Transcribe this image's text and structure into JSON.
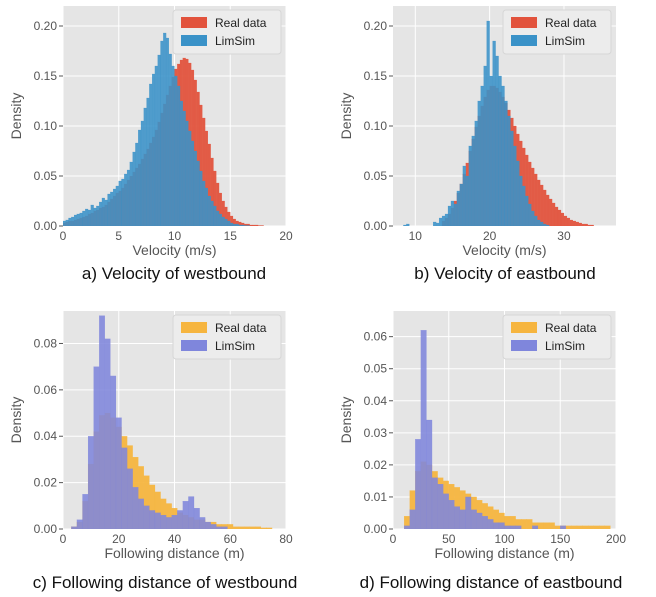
{
  "colors": {
    "panel_bg": "#e5e5e5",
    "grid": "#ffffff",
    "real_velocity": "#e2533d",
    "limsim_velocity": "#3a92c8",
    "real_distance": "#f6b53f",
    "limsim_distance": "#7f86dc"
  },
  "chart_data": [
    {
      "type": "histogram",
      "caption": "a) Velocity of westbound",
      "xlabel": "Velocity (m/s)",
      "ylabel": "Density",
      "xlim": [
        0,
        20
      ],
      "ylim": [
        0,
        0.22
      ],
      "xticks": [
        0,
        5,
        10,
        15,
        20
      ],
      "yticks": [
        0.0,
        0.05,
        0.1,
        0.15,
        0.2
      ],
      "ytick_labels": [
        "0.00",
        "0.05",
        "0.10",
        "0.15",
        "0.20"
      ],
      "grid": true,
      "legend_position": "top-right",
      "x": [
        0.12,
        0.37,
        0.62,
        0.87,
        1.12,
        1.37,
        1.62,
        1.87,
        2.12,
        2.37,
        2.62,
        2.87,
        3.12,
        3.37,
        3.62,
        3.87,
        4.12,
        4.37,
        4.62,
        4.87,
        5.12,
        5.37,
        5.62,
        5.87,
        6.12,
        6.37,
        6.62,
        6.87,
        7.12,
        7.37,
        7.62,
        7.87,
        8.12,
        8.37,
        8.62,
        8.87,
        9.12,
        9.37,
        9.62,
        9.87,
        10.12,
        10.37,
        10.62,
        10.87,
        11.12,
        11.37,
        11.62,
        11.87,
        12.12,
        12.37,
        12.62,
        12.87,
        13.12,
        13.37,
        13.62,
        13.87,
        14.12,
        14.37,
        14.62,
        14.87,
        15.12,
        15.37,
        15.62,
        15.87,
        16.12,
        16.37,
        16.62,
        16.87,
        17.12,
        17.37,
        17.62,
        17.87
      ],
      "series": [
        {
          "name": "Real data",
          "color": "#e2533d",
          "values": [
            0.003,
            0.004,
            0.005,
            0.005,
            0.006,
            0.007,
            0.008,
            0.009,
            0.01,
            0.012,
            0.013,
            0.015,
            0.016,
            0.018,
            0.019,
            0.021,
            0.024,
            0.027,
            0.03,
            0.033,
            0.035,
            0.038,
            0.042,
            0.046,
            0.05,
            0.054,
            0.058,
            0.062,
            0.067,
            0.072,
            0.077,
            0.083,
            0.089,
            0.096,
            0.104,
            0.113,
            0.122,
            0.131,
            0.14,
            0.149,
            0.157,
            0.162,
            0.166,
            0.168,
            0.167,
            0.163,
            0.156,
            0.146,
            0.134,
            0.121,
            0.108,
            0.095,
            0.082,
            0.068,
            0.055,
            0.043,
            0.033,
            0.025,
            0.019,
            0.014,
            0.01,
            0.007,
            0.005,
            0.004,
            0.003,
            0.002,
            0.002,
            0.001,
            0.001,
            0.001,
            0.0005,
            0.0005
          ]
        },
        {
          "name": "LimSim",
          "color": "#3a92c8",
          "values": [
            0.005,
            0.006,
            0.008,
            0.009,
            0.011,
            0.012,
            0.013,
            0.015,
            0.017,
            0.016,
            0.021,
            0.018,
            0.02,
            0.024,
            0.028,
            0.026,
            0.032,
            0.034,
            0.037,
            0.04,
            0.045,
            0.047,
            0.052,
            0.056,
            0.064,
            0.074,
            0.083,
            0.096,
            0.105,
            0.118,
            0.128,
            0.142,
            0.152,
            0.16,
            0.171,
            0.185,
            0.193,
            0.188,
            0.172,
            0.16,
            0.15,
            0.14,
            0.125,
            0.115,
            0.105,
            0.095,
            0.085,
            0.075,
            0.065,
            0.055,
            0.045,
            0.038,
            0.03,
            0.025,
            0.02,
            0.015,
            0.012,
            0.009,
            0.007,
            0.005,
            0.003,
            0.002,
            0.002,
            0.001,
            0.001,
            0.0005,
            0.0005,
            0,
            0,
            0,
            0,
            0
          ]
        }
      ]
    },
    {
      "type": "histogram",
      "caption": "b) Velocity of eastbound",
      "xlabel": "Velocity (m/s)",
      "ylabel": "Density",
      "xlim": [
        7,
        37
      ],
      "ylim": [
        0,
        0.22
      ],
      "xticks": [
        10,
        20,
        30
      ],
      "yticks": [
        0.0,
        0.05,
        0.1,
        0.15,
        0.2
      ],
      "ytick_labels": [
        "0.00",
        "0.05",
        "0.10",
        "0.15",
        "0.20"
      ],
      "grid": true,
      "legend_position": "top-right",
      "x": [
        8.2,
        8.6,
        9,
        9.4,
        9.8,
        10.2,
        10.6,
        11,
        11.4,
        11.8,
        12.2,
        12.6,
        13,
        13.4,
        13.8,
        14.2,
        14.6,
        15,
        15.4,
        15.8,
        16.2,
        16.6,
        17,
        17.4,
        17.8,
        18.2,
        18.6,
        19,
        19.4,
        19.8,
        20.2,
        20.6,
        21,
        21.4,
        21.8,
        22.2,
        22.6,
        23,
        23.4,
        23.8,
        24.2,
        24.6,
        25,
        25.4,
        25.8,
        26.2,
        26.6,
        27,
        27.4,
        27.8,
        28.2,
        28.6,
        29,
        29.4,
        29.8,
        30.2,
        30.6,
        31,
        31.4,
        31.8,
        32.2,
        32.6,
        33,
        33.4,
        33.8,
        34.2
      ],
      "series": [
        {
          "name": "Real data",
          "color": "#e2533d",
          "values": [
            0,
            0,
            0,
            0,
            0,
            0,
            0,
            0,
            0,
            0,
            0,
            0,
            0,
            0,
            0.005,
            0.008,
            0.012,
            0.018,
            0.025,
            0.033,
            0.042,
            0.052,
            0.063,
            0.075,
            0.087,
            0.099,
            0.11,
            0.12,
            0.129,
            0.136,
            0.14,
            0.14,
            0.138,
            0.134,
            0.129,
            0.123,
            0.116,
            0.108,
            0.1,
            0.092,
            0.085,
            0.078,
            0.071,
            0.064,
            0.058,
            0.052,
            0.046,
            0.041,
            0.036,
            0.031,
            0.027,
            0.023,
            0.019,
            0.016,
            0.013,
            0.01,
            0.008,
            0.006,
            0.005,
            0.004,
            0.003,
            0.002,
            0.002,
            0.001,
            0.001,
            0
          ]
        },
        {
          "name": "LimSim",
          "color": "#3a92c8",
          "values": [
            0,
            0.001,
            0.002,
            0,
            0,
            0,
            0,
            0,
            0,
            0,
            0,
            0.004,
            0.003,
            0.008,
            0.01,
            0.012,
            0.02,
            0.025,
            0.022,
            0.035,
            0.042,
            0.06,
            0.05,
            0.08,
            0.09,
            0.105,
            0.125,
            0.14,
            0.16,
            0.205,
            0.15,
            0.185,
            0.17,
            0.15,
            0.14,
            0.125,
            0.11,
            0.095,
            0.08,
            0.065,
            0.05,
            0.04,
            0.03,
            0.022,
            0.015,
            0.01,
            0.006,
            0.004,
            0.002,
            0.001,
            0,
            0,
            0,
            0,
            0,
            0,
            0,
            0,
            0,
            0,
            0,
            0,
            0,
            0,
            0,
            0
          ]
        }
      ]
    },
    {
      "type": "histogram",
      "caption": "c) Following distance of westbound",
      "xlabel": "Following distance (m)",
      "ylabel": "Density",
      "xlim": [
        0,
        80
      ],
      "ylim": [
        0,
        0.094
      ],
      "xticks": [
        0,
        20,
        40,
        60,
        80
      ],
      "yticks": [
        0.0,
        0.02,
        0.04,
        0.06,
        0.08
      ],
      "ytick_labels": [
        "0.00",
        "0.02",
        "0.04",
        "0.06",
        "0.08"
      ],
      "grid": true,
      "legend_position": "top-right",
      "x": [
        2,
        4,
        6,
        8,
        10,
        12,
        14,
        16,
        18,
        20,
        22,
        24,
        26,
        28,
        30,
        32,
        34,
        36,
        38,
        40,
        42,
        44,
        46,
        48,
        50,
        52,
        54,
        56,
        58,
        60,
        62,
        64,
        66,
        68,
        70,
        72,
        74
      ],
      "series": [
        {
          "name": "Real data",
          "color": "#f6b53f",
          "values": [
            0.0,
            0.001,
            0.003,
            0.012,
            0.028,
            0.042,
            0.049,
            0.05,
            0.048,
            0.044,
            0.04,
            0.036,
            0.031,
            0.027,
            0.023,
            0.019,
            0.016,
            0.013,
            0.011,
            0.009,
            0.007,
            0.006,
            0.005,
            0.004,
            0.004,
            0.003,
            0.003,
            0.002,
            0.002,
            0.002,
            0.001,
            0.001,
            0.001,
            0.001,
            0.001,
            0.0005,
            0.0005
          ]
        },
        {
          "name": "LimSim",
          "color": "#7f86dc",
          "values": [
            0,
            0.001,
            0.004,
            0.015,
            0.04,
            0.07,
            0.092,
            0.082,
            0.066,
            0.048,
            0.035,
            0.026,
            0.018,
            0.013,
            0.01,
            0.008,
            0.007,
            0.006,
            0.005,
            0.006,
            0.008,
            0.012,
            0.014,
            0.009,
            0.005,
            0.003,
            0.002,
            0.001,
            0.001,
            0,
            0,
            0,
            0,
            0,
            0,
            0,
            0
          ]
        }
      ]
    },
    {
      "type": "histogram",
      "caption": "d) Following distance of eastbound",
      "xlabel": "Following distance (m)",
      "ylabel": "Density",
      "xlim": [
        0,
        200
      ],
      "ylim": [
        0,
        0.068
      ],
      "xticks": [
        0,
        50,
        100,
        150,
        200
      ],
      "yticks": [
        0.0,
        0.01,
        0.02,
        0.03,
        0.04,
        0.05,
        0.06
      ],
      "ytick_labels": [
        "0.00",
        "0.01",
        "0.02",
        "0.03",
        "0.04",
        "0.05",
        "0.06"
      ],
      "grid": true,
      "legend_position": "top-right",
      "x": [
        12.5,
        17.5,
        22.5,
        27.5,
        32.5,
        37.5,
        42.5,
        47.5,
        52.5,
        57.5,
        62.5,
        67.5,
        72.5,
        77.5,
        82.5,
        87.5,
        92.5,
        97.5,
        102.5,
        107.5,
        112.5,
        117.5,
        122.5,
        127.5,
        132.5,
        137.5,
        142.5,
        147.5,
        152.5,
        157.5,
        162.5,
        167.5,
        172.5,
        177.5,
        182.5,
        187.5,
        192.5,
        197.5
      ],
      "series": [
        {
          "name": "Real data",
          "color": "#f6b53f",
          "values": [
            0.004,
            0.012,
            0.018,
            0.021,
            0.02,
            0.018,
            0.016,
            0.015,
            0.014,
            0.013,
            0.012,
            0.011,
            0.01,
            0.009,
            0.008,
            0.007,
            0.006,
            0.005,
            0.004,
            0.004,
            0.003,
            0.003,
            0.003,
            0.002,
            0.002,
            0.002,
            0.002,
            0.001,
            0.001,
            0.001,
            0.001,
            0.001,
            0.001,
            0.001,
            0.001,
            0.001,
            0.001,
            0
          ]
        },
        {
          "name": "LimSim",
          "color": "#7f86dc",
          "values": [
            0.001,
            0.006,
            0.028,
            0.062,
            0.034,
            0.016,
            0.014,
            0.011,
            0.009,
            0.007,
            0.006,
            0.01,
            0.006,
            0.005,
            0.004,
            0.003,
            0.002,
            0.002,
            0.001,
            0.001,
            0.001,
            0,
            0,
            0.001,
            0,
            0,
            0,
            0,
            0.001,
            0,
            0,
            0,
            0,
            0,
            0,
            0,
            0,
            0
          ]
        }
      ]
    }
  ]
}
